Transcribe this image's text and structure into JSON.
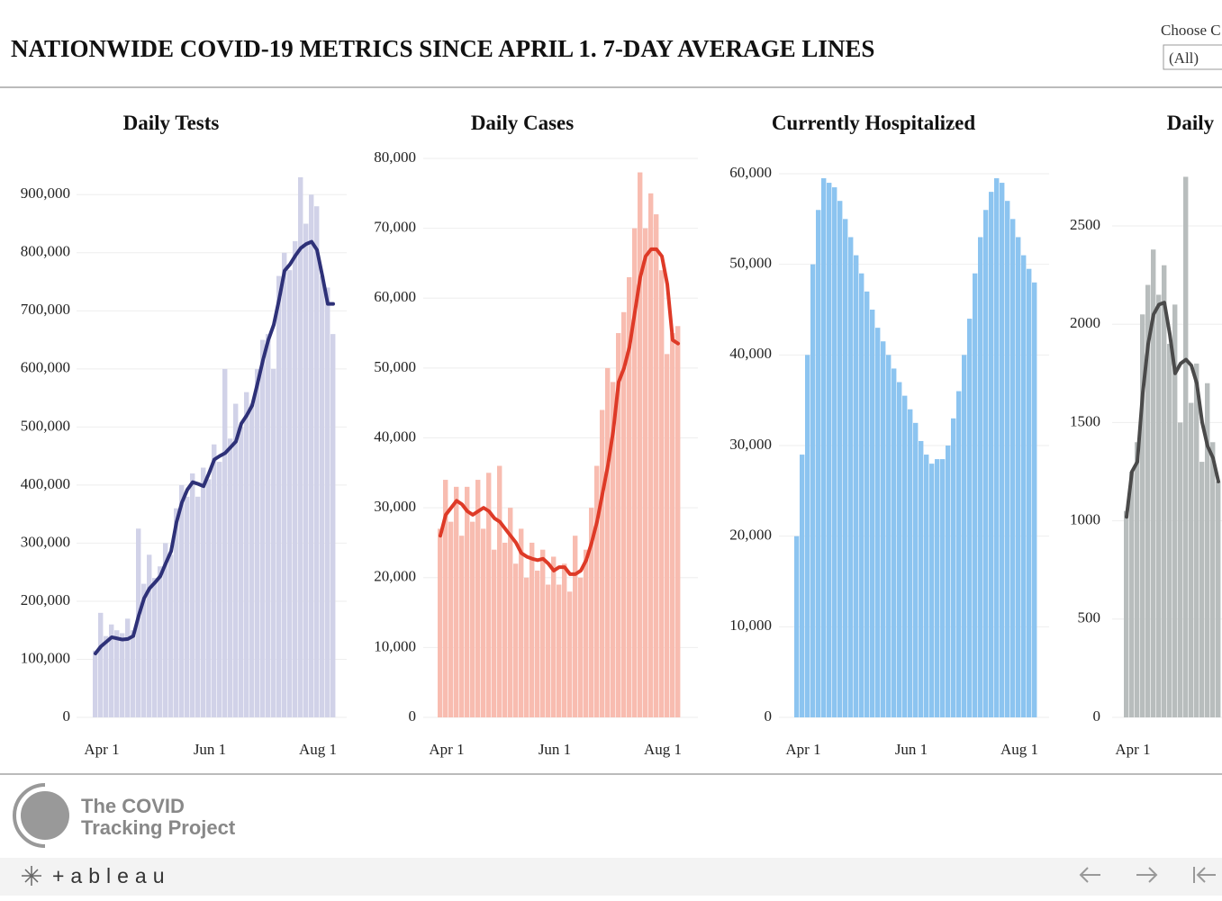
{
  "header": {
    "title": "NATIONWIDE COVID-19 METRICS SINCE APRIL 1. 7-DAY AVERAGE LINES",
    "filter_label": "Choose C",
    "filter_value": "(All)"
  },
  "chart_data": [
    {
      "type": "bar",
      "title": "Daily Tests",
      "categories": [
        "Apr 1",
        null,
        null,
        null,
        null,
        null,
        null,
        null,
        null,
        null,
        null,
        null,
        null,
        null,
        null,
        null,
        null,
        null,
        null,
        null,
        "Jun 1",
        null,
        null,
        null,
        null,
        null,
        null,
        null,
        null,
        null,
        null,
        null,
        null,
        null,
        null,
        null,
        null,
        null,
        null,
        null,
        "Aug 1",
        null,
        null,
        null,
        null
      ],
      "values": [
        115000,
        180000,
        140000,
        160000,
        150000,
        145000,
        170000,
        150000,
        325000,
        230000,
        280000,
        240000,
        260000,
        300000,
        280000,
        360000,
        400000,
        380000,
        420000,
        380000,
        430000,
        410000,
        470000,
        440000,
        600000,
        480000,
        540000,
        500000,
        560000,
        540000,
        600000,
        650000,
        660000,
        600000,
        760000,
        800000,
        770000,
        820000,
        930000,
        850000,
        900000,
        880000,
        760000,
        740000,
        660000
      ],
      "color": "#d1d2e8",
      "line_values": [
        110000,
        122000,
        130000,
        138000,
        136000,
        134000,
        135000,
        140000,
        175000,
        205000,
        222000,
        232000,
        243000,
        265000,
        286000,
        336000,
        370000,
        392000,
        405000,
        402000,
        398000,
        420000,
        444000,
        450000,
        455000,
        465000,
        475000,
        506000,
        520000,
        537000,
        575000,
        615000,
        650000,
        676000,
        720000,
        769000,
        780000,
        795000,
        808000,
        815000,
        819000,
        805000,
        760000,
        712000,
        712000
      ],
      "line_color": "#2e3178",
      "ylim": [
        0,
        950000
      ],
      "yticks": [
        0,
        {
          "value": 100000,
          "label": "100,000"
        },
        {
          "value": 200000,
          "label": "200,000"
        },
        {
          "value": 300000,
          "label": "300,000"
        },
        {
          "value": 400000,
          "label": "400,000"
        },
        {
          "value": 500000,
          "label": "500,000"
        },
        {
          "value": 600000,
          "label": "600,000"
        },
        {
          "value": 700000,
          "label": "700,000"
        },
        {
          "value": 800000,
          "label": "800,000"
        },
        {
          "value": 900000,
          "label": "900,000"
        }
      ],
      "grid": true
    },
    {
      "type": "bar",
      "title": "Daily Cases",
      "categories": [
        "Apr 1",
        null,
        null,
        null,
        null,
        null,
        null,
        null,
        null,
        null,
        null,
        null,
        null,
        null,
        null,
        null,
        null,
        null,
        null,
        null,
        "Jun 1",
        null,
        null,
        null,
        null,
        null,
        null,
        null,
        null,
        null,
        null,
        null,
        null,
        null,
        null,
        null,
        null,
        null,
        null,
        null,
        "Aug 1",
        null,
        null,
        null,
        null
      ],
      "values": [
        27000,
        34000,
        28000,
        33000,
        26000,
        33000,
        28000,
        34000,
        27000,
        35000,
        24000,
        36000,
        25000,
        30000,
        22000,
        27000,
        20000,
        25000,
        21000,
        24000,
        19000,
        23000,
        19000,
        22000,
        18000,
        26000,
        20000,
        24000,
        30000,
        36000,
        44000,
        50000,
        48000,
        55000,
        58000,
        63000,
        70000,
        78000,
        70000,
        75000,
        72000,
        64000,
        52000,
        55000,
        56000
      ],
      "color": "#f8bcb0",
      "line_values": [
        26000,
        29000,
        30000,
        31000,
        30500,
        29500,
        29000,
        29500,
        30000,
        29500,
        28500,
        28000,
        27000,
        26000,
        25000,
        23500,
        23000,
        22700,
        22500,
        22700,
        22000,
        21000,
        21500,
        21500,
        20500,
        20500,
        21000,
        22500,
        25000,
        28000,
        32000,
        36000,
        41000,
        48000,
        50000,
        53000,
        58000,
        63000,
        66000,
        67000,
        67000,
        66000,
        62000,
        54000,
        53500
      ],
      "line_color": "#de3a27",
      "ylim": [
        0,
        80000
      ],
      "yticks": [
        0,
        {
          "value": 10000,
          "label": "10,000"
        },
        {
          "value": 20000,
          "label": "20,000"
        },
        {
          "value": 30000,
          "label": "30,000"
        },
        {
          "value": 40000,
          "label": "40,000"
        },
        {
          "value": 50000,
          "label": "50,000"
        },
        {
          "value": 60000,
          "label": "60,000"
        },
        {
          "value": 70000,
          "label": "70,000"
        },
        {
          "value": 80000,
          "label": "80,000"
        }
      ],
      "grid": true
    },
    {
      "type": "bar",
      "title": "Currently Hospitalized",
      "categories": [
        "Apr 1",
        null,
        null,
        null,
        null,
        null,
        null,
        null,
        null,
        null,
        null,
        null,
        null,
        null,
        null,
        null,
        null,
        null,
        null,
        null,
        "Jun 1",
        null,
        null,
        null,
        null,
        null,
        null,
        null,
        null,
        null,
        null,
        null,
        null,
        null,
        null,
        null,
        null,
        null,
        null,
        null,
        "Aug 1",
        null,
        null,
        null,
        null
      ],
      "values": [
        20000,
        29000,
        40000,
        50000,
        56000,
        59500,
        59000,
        58500,
        57000,
        55000,
        53000,
        51000,
        49000,
        47000,
        45000,
        43000,
        41500,
        40000,
        38500,
        37000,
        35500,
        34000,
        32500,
        30500,
        29000,
        28000,
        28500,
        28500,
        30000,
        33000,
        36000,
        40000,
        44000,
        49000,
        53000,
        56000,
        58000,
        59500,
        59000,
        57000,
        55000,
        53000,
        51000,
        49500,
        48000
      ],
      "color": "#8cc4f0",
      "ylim": [
        0,
        60000
      ],
      "yticks": [
        0,
        {
          "value": 10000,
          "label": "10,000"
        },
        {
          "value": 20000,
          "label": "20,000"
        },
        {
          "value": 30000,
          "label": "30,000"
        },
        {
          "value": 40000,
          "label": "40,000"
        },
        {
          "value": 50000,
          "label": "50,000"
        },
        {
          "value": 60000,
          "label": "60,000"
        }
      ],
      "grid": true
    },
    {
      "type": "bar",
      "title": "Daily",
      "categories": [
        "Apr 1",
        null,
        null,
        null,
        null,
        null,
        null,
        null,
        null,
        null,
        null,
        null,
        null,
        null,
        null,
        null,
        null,
        null
      ],
      "values": [
        1050,
        1250,
        1400,
        2050,
        2200,
        2380,
        2150,
        2300,
        1900,
        2100,
        1500,
        2750,
        1600,
        1800,
        1300,
        1700,
        1400,
        1200
      ],
      "color": "#b8bdbd",
      "line_values": [
        1020,
        1250,
        1300,
        1650,
        1900,
        2050,
        2100,
        2110,
        1950,
        1750,
        1800,
        1820,
        1790,
        1700,
        1500,
        1380,
        1320,
        1200
      ],
      "line_color": "#4a4a4a",
      "ylim": [
        0,
        2800
      ],
      "yticks": [
        0,
        500,
        1000,
        1500,
        2000,
        2500
      ],
      "grid": true
    }
  ],
  "footer": {
    "logo_line1": "The COVID",
    "logo_line2": "Tracking Project",
    "brand": "+ableau"
  }
}
